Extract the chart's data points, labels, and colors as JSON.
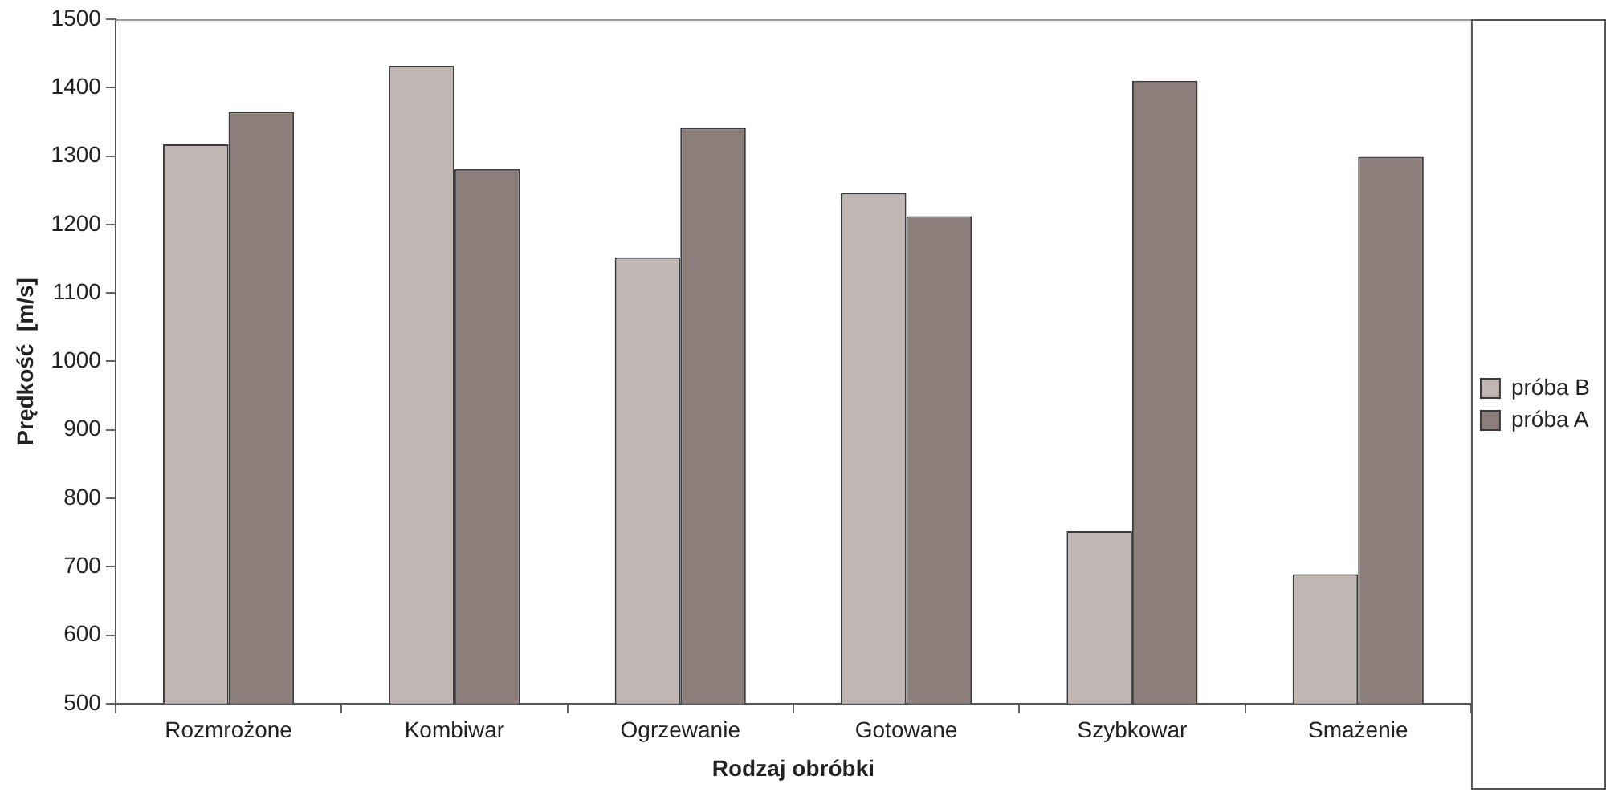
{
  "chart_data": {
    "type": "bar",
    "xlabel": "Rodzaj obróbki",
    "ylabel": "Prędkość  [m/s]",
    "categories": [
      "Rozmrożone",
      "Kombiwar",
      "Ogrzewanie",
      "Gotowane",
      "Szybkowar",
      "Smażenie"
    ],
    "series": [
      {
        "name": "próba B",
        "color": "#c0b6b3",
        "values": [
          1317,
          1432,
          1152,
          1246,
          752,
          689
        ]
      },
      {
        "name": "próba A",
        "color": "#8c7f7b",
        "values": [
          1365,
          1281,
          1341,
          1212,
          1410,
          1299
        ]
      }
    ],
    "ylim": [
      500,
      1500
    ],
    "yticks": [
      500,
      600,
      700,
      800,
      900,
      1000,
      1100,
      1200,
      1300,
      1400,
      1500
    ],
    "grid": false,
    "legend": "right"
  }
}
